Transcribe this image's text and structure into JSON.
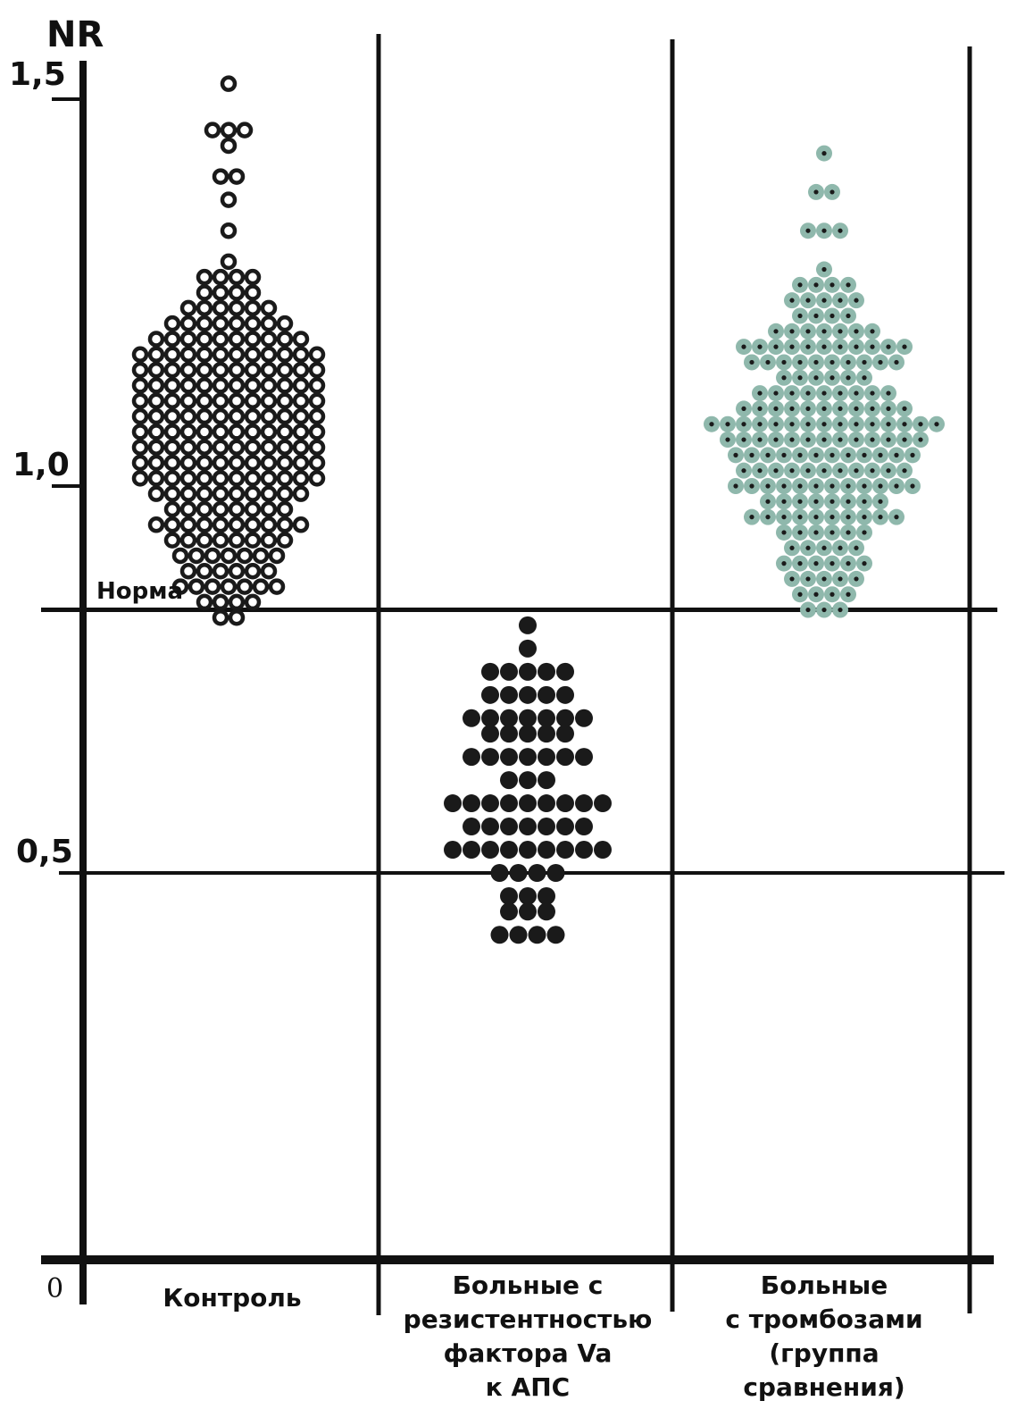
{
  "chart_data": {
    "type": "scatter",
    "subtype": "dot-plot",
    "title": "",
    "ylabel": "NR",
    "xlabel": "",
    "ylim": [
      0,
      1.5
    ],
    "yticks": [
      {
        "value": 1.5,
        "label": "1,5"
      },
      {
        "value": 1.0,
        "label": "1,0"
      },
      {
        "value": 0.5,
        "label": "0,5"
      },
      {
        "value": 0,
        "label": "0"
      }
    ],
    "categories": [
      [
        "Контроль"
      ],
      [
        "Больные с",
        "резистентностью",
        "фактора Va",
        "к АПС"
      ],
      [
        "Больные",
        "с тромбозами",
        "(группа",
        "сравнения)"
      ]
    ],
    "reference_line": {
      "value": 0.84,
      "label": "Норма"
    },
    "styles": {
      "marker_colors": [
        "#1a1a1a",
        "#1a1a1a",
        "#8fb8ac"
      ],
      "marker_types": [
        "open-circle",
        "filled-circle",
        "shaded-circle-with-dot"
      ],
      "line_color": "#111111"
    },
    "series": [
      {
        "rows": [
          {
            "y": 1.52,
            "n": 1
          },
          {
            "y": 1.46,
            "n": 3
          },
          {
            "y": 1.44,
            "n": 1
          },
          {
            "y": 1.4,
            "n": 2
          },
          {
            "y": 1.37,
            "n": 1
          },
          {
            "y": 1.33,
            "n": 1
          },
          {
            "y": 1.29,
            "n": 1
          },
          {
            "y": 1.27,
            "n": 4
          },
          {
            "y": 1.25,
            "n": 4
          },
          {
            "y": 1.23,
            "n": 6
          },
          {
            "y": 1.21,
            "n": 8
          },
          {
            "y": 1.19,
            "n": 10
          },
          {
            "y": 1.17,
            "n": 12
          },
          {
            "y": 1.15,
            "n": 12
          },
          {
            "y": 1.13,
            "n": 12
          },
          {
            "y": 1.11,
            "n": 12
          },
          {
            "y": 1.09,
            "n": 12
          },
          {
            "y": 1.07,
            "n": 12
          },
          {
            "y": 1.05,
            "n": 12
          },
          {
            "y": 1.03,
            "n": 12
          },
          {
            "y": 1.01,
            "n": 12
          },
          {
            "y": 0.99,
            "n": 10
          },
          {
            "y": 0.97,
            "n": 8
          },
          {
            "y": 0.95,
            "n": 10
          },
          {
            "y": 0.93,
            "n": 8
          },
          {
            "y": 0.91,
            "n": 7
          },
          {
            "y": 0.89,
            "n": 6
          },
          {
            "y": 0.87,
            "n": 7
          },
          {
            "y": 0.85,
            "n": 4
          },
          {
            "y": 0.83,
            "n": 2
          }
        ]
      },
      {
        "rows": [
          {
            "y": 0.82,
            "n": 1
          },
          {
            "y": 0.79,
            "n": 1
          },
          {
            "y": 0.76,
            "n": 5
          },
          {
            "y": 0.73,
            "n": 5
          },
          {
            "y": 0.7,
            "n": 7
          },
          {
            "y": 0.68,
            "n": 5
          },
          {
            "y": 0.65,
            "n": 7
          },
          {
            "y": 0.62,
            "n": 3
          },
          {
            "y": 0.59,
            "n": 9
          },
          {
            "y": 0.56,
            "n": 7
          },
          {
            "y": 0.53,
            "n": 9
          },
          {
            "y": 0.5,
            "n": 4
          },
          {
            "y": 0.47,
            "n": 3
          },
          {
            "y": 0.45,
            "n": 3
          },
          {
            "y": 0.42,
            "n": 4
          }
        ]
      },
      {
        "rows": [
          {
            "y": 1.43,
            "n": 1
          },
          {
            "y": 1.38,
            "n": 2
          },
          {
            "y": 1.33,
            "n": 3
          },
          {
            "y": 1.28,
            "n": 1
          },
          {
            "y": 1.26,
            "n": 4
          },
          {
            "y": 1.24,
            "n": 5
          },
          {
            "y": 1.22,
            "n": 4
          },
          {
            "y": 1.2,
            "n": 7
          },
          {
            "y": 1.18,
            "n": 11
          },
          {
            "y": 1.16,
            "n": 10
          },
          {
            "y": 1.14,
            "n": 6
          },
          {
            "y": 1.12,
            "n": 9
          },
          {
            "y": 1.1,
            "n": 11
          },
          {
            "y": 1.08,
            "n": 15
          },
          {
            "y": 1.06,
            "n": 13
          },
          {
            "y": 1.04,
            "n": 12
          },
          {
            "y": 1.02,
            "n": 11
          },
          {
            "y": 1.0,
            "n": 12
          },
          {
            "y": 0.98,
            "n": 8
          },
          {
            "y": 0.96,
            "n": 10
          },
          {
            "y": 0.94,
            "n": 6
          },
          {
            "y": 0.92,
            "n": 5
          },
          {
            "y": 0.9,
            "n": 6
          },
          {
            "y": 0.88,
            "n": 5
          },
          {
            "y": 0.86,
            "n": 4
          },
          {
            "y": 0.84,
            "n": 3
          }
        ]
      }
    ]
  }
}
